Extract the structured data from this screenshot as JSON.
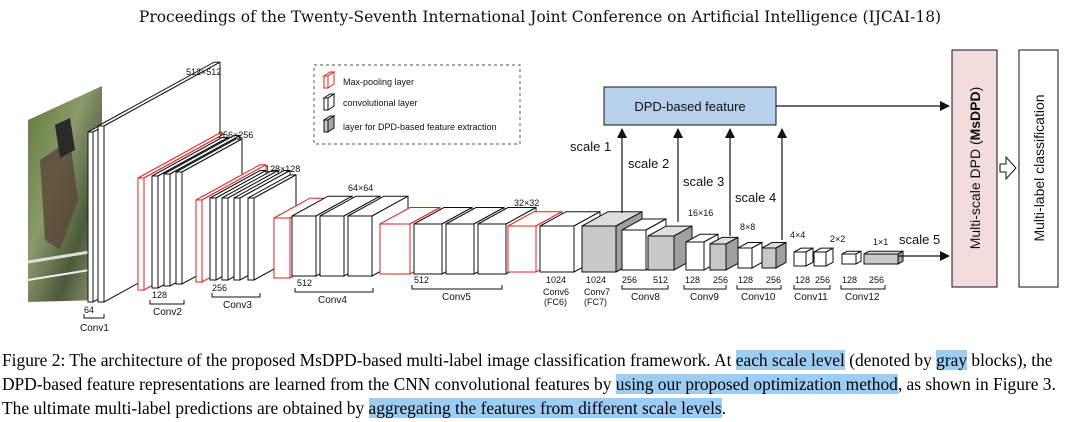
{
  "header": "Proceedings of the Twenty-Seventh International Joint Conference on Artificial Intelligence (IJCAI-18)",
  "figure": {
    "legend": {
      "maxpool": "Max-pooling layer",
      "conv": "convolutional layer",
      "dpd": "layer for DPD-based feature extraction"
    },
    "dims": {
      "d512": "512×512",
      "d256": "256×256",
      "d128": "128×128",
      "d64": "64×64",
      "d32": "32×32",
      "d16": "16×16",
      "d8": "8×8",
      "d4": "4×4",
      "d2": "2×2",
      "d1": "1×1"
    },
    "channels": {
      "c1": "64",
      "c2": "128",
      "c3": "256",
      "c4": "512",
      "c5": "512",
      "c6": "1024",
      "c7": "1024",
      "c8a": "256",
      "c8b": "512",
      "c9a": "128",
      "c9b": "256",
      "c10a": "128",
      "c10b": "256",
      "c11a": "128",
      "c11b": "256",
      "c12a": "128",
      "c12b": "256"
    },
    "groups": {
      "conv1": "Conv1",
      "conv2": "Conv2",
      "conv3": "Conv3",
      "conv4": "Conv4",
      "conv5": "Conv5",
      "conv6": "Conv6",
      "fc6": "(FC6)",
      "conv7": "Conv7",
      "fc7": "(FC7)",
      "conv8": "Conv8",
      "conv9": "Conv9",
      "conv10": "Conv10",
      "conv11": "Conv11",
      "conv12": "Conv12"
    },
    "scales": {
      "s1": "scale 1",
      "s2": "scale 2",
      "s3": "scale 3",
      "s4": "scale 4",
      "s5": "scale 5"
    },
    "dpd_box": "DPD-based feature",
    "msdpd_prefix": "Multi-scale DPD (",
    "msdpd_bold": "MsDPD",
    "msdpd_suffix": ")",
    "mlc": "Multi-label classification"
  },
  "caption": {
    "p1": "Figure 2: The architecture of the proposed MsDPD-based multi-label image classification framework. At ",
    "h1": "each scale level",
    "p2": " (denoted by ",
    "h2": "gray",
    "p3": " blocks), the DPD-based feature representations are learned from the CNN convolutional features by ",
    "h3": "using our proposed optimization method",
    "p4": ", as shown in Figure 3. The ultimate multi-label predictions are obtained by ",
    "h4": "aggregating the features from different scale levels",
    "p5": "."
  },
  "colors": {
    "maxpool": "#e02020",
    "dpd_gray": "#c8c8c8",
    "dpd_box": "#b7d1ec",
    "msdpd_box": "#f3dcdc",
    "highlight": "#9ccdf5"
  }
}
